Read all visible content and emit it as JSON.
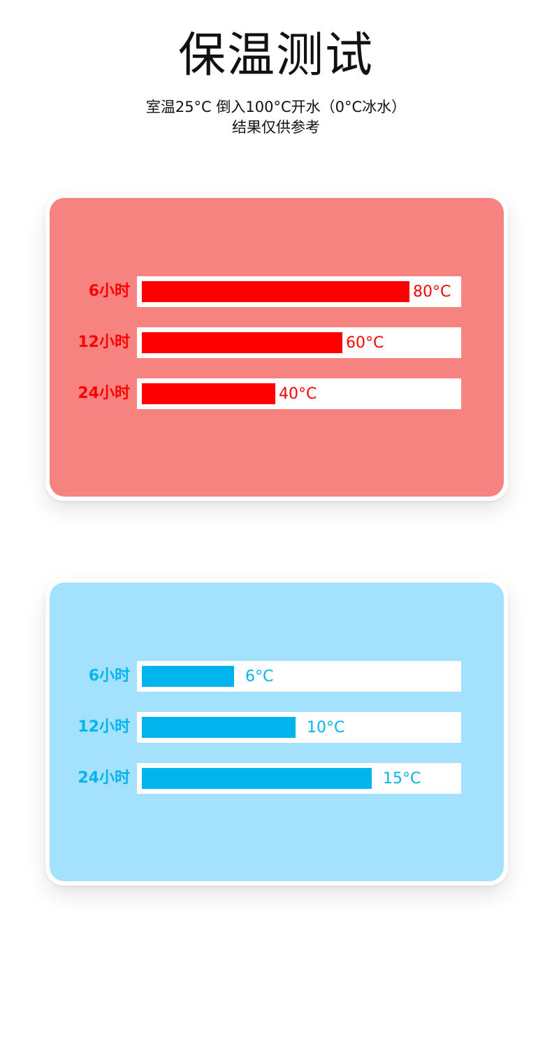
{
  "header": {
    "title": "保温测试",
    "subtitle_line1": "室温25°C 倒入100°C开水（0°C冰水）",
    "subtitle_line2": "结果仅供参考"
  },
  "colors": {
    "hot_panel": "#F78380",
    "hot_bar": "#FF0000",
    "cold_panel": "#A3E1FD",
    "cold_bar": "#00B4EE"
  },
  "chart_data": [
    {
      "type": "bar",
      "orientation": "horizontal",
      "name": "hot",
      "categories": [
        "6小时",
        "12小时",
        "24小时"
      ],
      "values": [
        80,
        60,
        40
      ],
      "value_labels": [
        "80°C",
        "60°C",
        "40°C"
      ],
      "unit": "°C",
      "xlim": [
        0,
        94
      ]
    },
    {
      "type": "bar",
      "orientation": "horizontal",
      "name": "cold",
      "categories": [
        "6小时",
        "12小时",
        "24小时"
      ],
      "values": [
        6,
        10,
        15
      ],
      "value_labels": [
        "6°C",
        "10°C",
        "15°C"
      ],
      "unit": "°C",
      "xlim": [
        0,
        20.5
      ]
    }
  ]
}
